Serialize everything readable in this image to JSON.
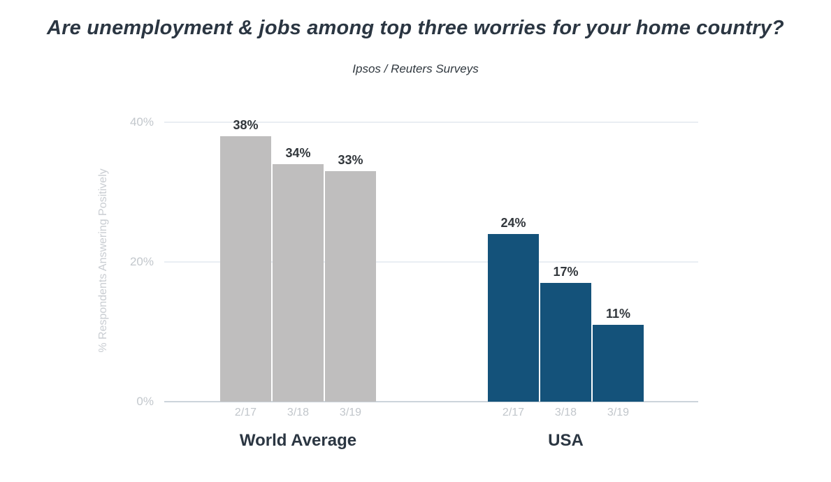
{
  "title": "Are unemployment & jobs among top three worries for your home country?",
  "subtitle": "Ipsos / Reuters Surveys",
  "chart_data": {
    "type": "bar",
    "title": "Are unemployment & jobs among top three worries for your home country?",
    "subtitle": "Ipsos / Reuters Surveys",
    "xlabel": "",
    "ylabel": "% Respondents Answering Positively",
    "ylim": [
      0,
      40
    ],
    "grid": "horizontal",
    "legend": "none",
    "yticks": [
      {
        "value": 0,
        "label": "0%"
      },
      {
        "value": 20,
        "label": "20%"
      },
      {
        "value": 40,
        "label": "40%"
      }
    ],
    "categories": [
      "2/17",
      "3/18",
      "3/19"
    ],
    "groups": [
      {
        "name": "World Average",
        "color": "#bfbebe",
        "values": [
          38,
          34,
          33
        ],
        "labels": [
          "38%",
          "34%",
          "33%"
        ]
      },
      {
        "name": "USA",
        "color": "#14527a",
        "values": [
          24,
          17,
          11
        ],
        "labels": [
          "24%",
          "17%",
          "11%"
        ]
      }
    ]
  },
  "colors": {
    "title_text": "#2b3642",
    "value_label_text": "#32373c",
    "axis_tick_text": "#c2c7cc",
    "world_average_bar": "#bfbebe",
    "usa_bar": "#14527a"
  }
}
